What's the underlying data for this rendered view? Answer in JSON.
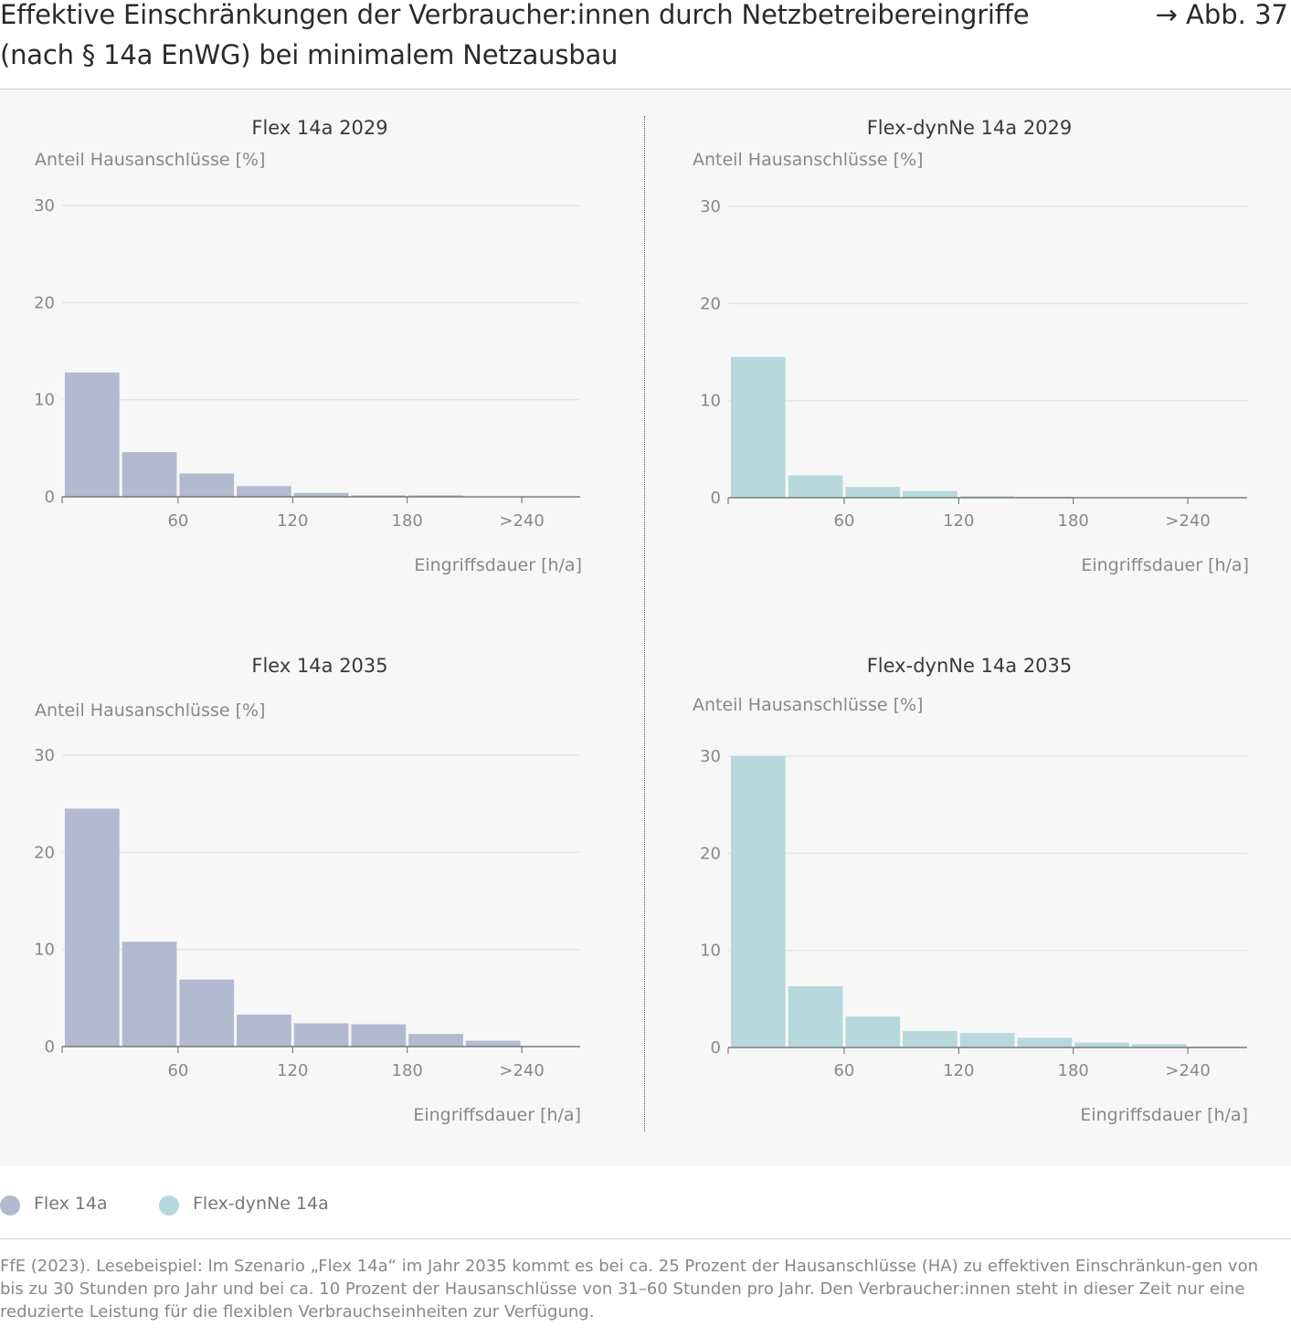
{
  "header": {
    "title": "Effektive Einschränkungen der Verbraucher:innen durch Netzbetreibereingriffe (nach § 14a EnWG) bei minimalem Netzausbau",
    "figure_ref": "→ Abb. 37"
  },
  "colors": {
    "flex": "#b2bacf",
    "flexdyn": "#b7d8dc",
    "panel_bg": "#f7f7f7",
    "grid": "#e6e6e6",
    "axis": "#666666"
  },
  "chart_data": [
    {
      "type": "bar",
      "title": "Flex 14a 2029",
      "ylabel": "Anteil Hausanschlüsse [%]",
      "xlabel": "Eingriffsdauer [h/a]",
      "ylim": [
        0,
        30
      ],
      "yticks": [
        0,
        10,
        20,
        30
      ],
      "xticks": [
        "60",
        "120",
        "180",
        ">240"
      ],
      "grid": true,
      "series": [
        {
          "name": "Flex 14a",
          "color": "#b2bacf",
          "values": [
            12.8,
            4.6,
            2.4,
            1.1,
            0.4,
            0.15,
            0.15,
            0.05,
            0.0
          ]
        }
      ]
    },
    {
      "type": "bar",
      "title": "Flex-dynNe 14a 2029",
      "ylabel": "Anteil Hausanschlüsse [%]",
      "xlabel": "Eingriffsdauer [h/a]",
      "ylim": [
        0,
        30
      ],
      "yticks": [
        0,
        10,
        20,
        30
      ],
      "xticks": [
        "60",
        "120",
        "180",
        ">240"
      ],
      "grid": true,
      "series": [
        {
          "name": "Flex-dynNe 14a",
          "color": "#b7d8dc",
          "values": [
            14.5,
            2.3,
            1.1,
            0.7,
            0.15,
            0.1,
            0.05,
            0.0,
            0.0
          ]
        }
      ]
    },
    {
      "type": "bar",
      "title": "Flex 14a 2035",
      "ylabel": "Anteil Hausanschlüsse [%]",
      "xlabel": "Eingriffsdauer [h/a]",
      "ylim": [
        0,
        30
      ],
      "yticks": [
        0,
        10,
        20,
        30
      ],
      "xticks": [
        "60",
        "120",
        "180",
        ">240"
      ],
      "grid": true,
      "series": [
        {
          "name": "Flex 14a",
          "color": "#b2bacf",
          "values": [
            24.5,
            10.8,
            6.9,
            3.3,
            2.4,
            2.3,
            1.3,
            0.6,
            0.05
          ]
        }
      ]
    },
    {
      "type": "bar",
      "title": "Flex-dynNe 14a 2035",
      "ylabel": "Anteil Hausanschlüsse [%]",
      "xlabel": "Eingriffsdauer [h/a]",
      "ylim": [
        0,
        30
      ],
      "yticks": [
        0,
        10,
        20,
        30
      ],
      "xticks": [
        "60",
        "120",
        "180",
        ">240"
      ],
      "grid": true,
      "series": [
        {
          "name": "Flex-dynNe 14a",
          "color": "#b7d8dc",
          "values": [
            30.0,
            6.3,
            3.2,
            1.7,
            1.5,
            1.0,
            0.5,
            0.35,
            0.1
          ]
        }
      ]
    }
  ],
  "legend": [
    {
      "label": "Flex 14a",
      "color": "#b2bacf"
    },
    {
      "label": "Flex-dynNe 14a",
      "color": "#b7d8dc"
    }
  ],
  "source": "FfE (2023). Lesebeispiel: Im Szenario „Flex 14a“ im Jahr 2035 kommt es bei ca. 25 Prozent der Hausanschlüsse (HA) zu effektiven Einschränkun-gen von bis zu 30 Stunden pro Jahr und bei ca. 10 Prozent der Hausanschlüsse von 31–60 Stunden pro Jahr. Den Verbraucher:innen steht in dieser Zeit nur eine reduzierte Leistung für die flexiblen Verbrauchseinheiten zur Verfügung."
}
